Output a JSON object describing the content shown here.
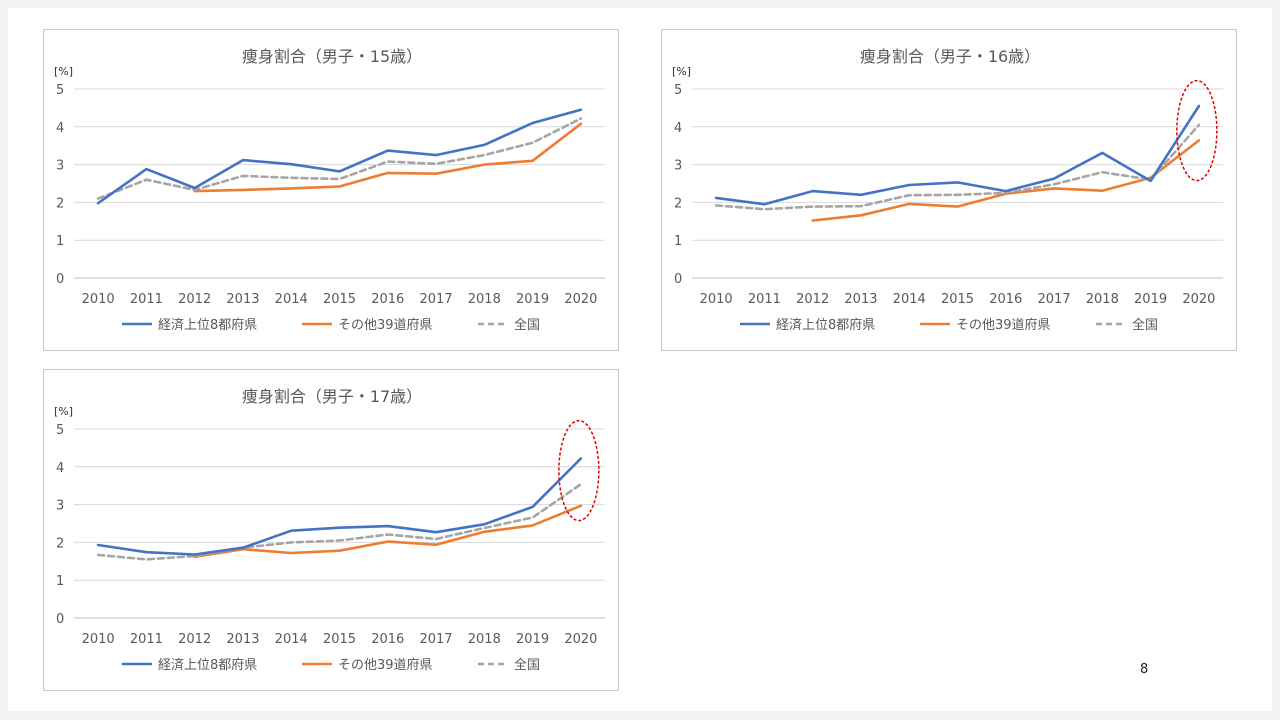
{
  "slide": {
    "page_number": "8"
  },
  "chart_data": [
    {
      "type": "line",
      "title": "痩身割合（男子・15歳）",
      "ylabel": "[%]",
      "x": [
        "2010",
        "2011",
        "2012",
        "2013",
        "2014",
        "2015",
        "2016",
        "2017",
        "2018",
        "2019",
        "2020"
      ],
      "ylim": [
        0,
        5
      ],
      "yticks": [
        0,
        1,
        2,
        3,
        4,
        5
      ],
      "grid": true,
      "legend_position": "bottom",
      "series": [
        {
          "name": "経済上位8都府県",
          "color": "#4472c4",
          "dash": false,
          "values": [
            1.98,
            2.88,
            2.38,
            3.12,
            3.01,
            2.82,
            3.37,
            3.25,
            3.52,
            4.1,
            4.45
          ]
        },
        {
          "name": "その他39道府県",
          "color": "#ed7d31",
          "dash": false,
          "values": [
            null,
            null,
            2.3,
            2.33,
            2.37,
            2.42,
            2.78,
            2.76,
            3.0,
            3.1,
            4.08
          ]
        },
        {
          "name": "全国",
          "color": "#a5a5a5",
          "dash": true,
          "values": [
            2.1,
            2.6,
            2.33,
            2.7,
            2.65,
            2.62,
            3.08,
            3.02,
            3.25,
            3.58,
            4.22
          ]
        }
      ],
      "highlight_index": null
    },
    {
      "type": "line",
      "title": "痩身割合（男子・16歳）",
      "ylabel": "[%]",
      "x": [
        "2010",
        "2011",
        "2012",
        "2013",
        "2014",
        "2015",
        "2016",
        "2017",
        "2018",
        "2019",
        "2020"
      ],
      "ylim": [
        0,
        5
      ],
      "yticks": [
        0,
        1,
        2,
        3,
        4,
        5
      ],
      "grid": true,
      "legend_position": "bottom",
      "series": [
        {
          "name": "経済上位8都府県",
          "color": "#4472c4",
          "dash": false,
          "values": [
            2.12,
            1.95,
            2.3,
            2.2,
            2.46,
            2.53,
            2.3,
            2.63,
            3.31,
            2.57,
            4.55
          ]
        },
        {
          "name": "その他39道府県",
          "color": "#ed7d31",
          "dash": false,
          "values": [
            null,
            null,
            1.52,
            1.66,
            1.96,
            1.89,
            2.23,
            2.37,
            2.31,
            2.65,
            3.64
          ]
        },
        {
          "name": "全国",
          "color": "#a5a5a5",
          "dash": true,
          "values": [
            1.92,
            1.82,
            1.89,
            1.9,
            2.19,
            2.2,
            2.25,
            2.48,
            2.8,
            2.6,
            4.05
          ]
        }
      ],
      "highlight_index": 10
    },
    {
      "type": "line",
      "title": "痩身割合（男子・17歳）",
      "ylabel": "[%]",
      "x": [
        "2010",
        "2011",
        "2012",
        "2013",
        "2014",
        "2015",
        "2016",
        "2017",
        "2018",
        "2019",
        "2020"
      ],
      "ylim": [
        0,
        5
      ],
      "yticks": [
        0,
        1,
        2,
        3,
        4,
        5
      ],
      "grid": true,
      "legend_position": "bottom",
      "series": [
        {
          "name": "経済上位8都府県",
          "color": "#4472c4",
          "dash": false,
          "values": [
            1.93,
            1.74,
            1.68,
            1.86,
            2.31,
            2.39,
            2.43,
            2.27,
            2.48,
            2.94,
            4.22
          ]
        },
        {
          "name": "その他39道府県",
          "color": "#ed7d31",
          "dash": false,
          "values": [
            null,
            null,
            1.62,
            1.82,
            1.72,
            1.78,
            2.02,
            1.94,
            2.28,
            2.45,
            2.97
          ]
        },
        {
          "name": "全国",
          "color": "#a5a5a5",
          "dash": true,
          "values": [
            1.67,
            1.55,
            1.64,
            1.86,
            2.0,
            2.05,
            2.21,
            2.09,
            2.38,
            2.66,
            3.54
          ]
        }
      ],
      "highlight_index": 10
    }
  ]
}
